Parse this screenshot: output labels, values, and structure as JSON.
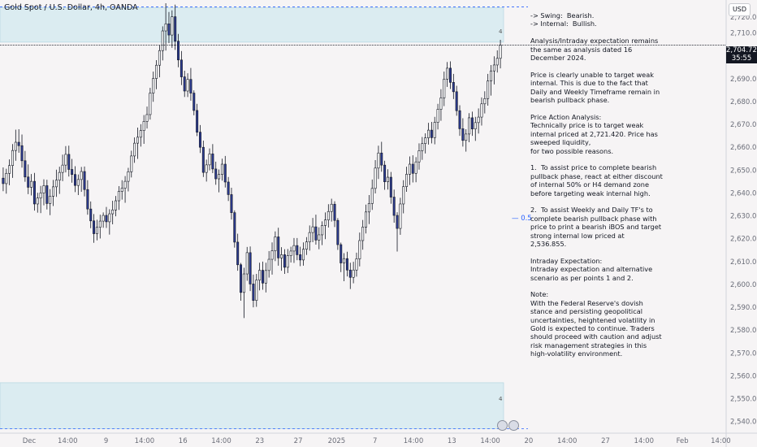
{
  "title": "Gold Spot / U.S. Dollar, 4h, OANDA",
  "currency_button": "USD",
  "last_price": "2,704.720",
  "countdown": "35:55",
  "half_label": "— 0.5",
  "zone_marker": "4",
  "zone_marker_bottom": "4",
  "note_text": "-> Swing:  Bearish.\n-> Internal:  Bullish.\n\nAnalysis/Intraday expectation remains the same as analysis dated 16 December 2024.\n\nPrice is clearly unable to target weak internal. This is due to the fact that Daily and Weekly Timeframe remain in bearish pullback phase.\n\nPrice Action Analysis:\nTechnically price is to target weak internal priced at 2,721.420. Price has sweeped liquidity,\nfor two possible reasons.\n\n1.  To assist price to complete bearish pullback phase, react at either discount of internal 50% or H4 demand zone before targeting weak internal high.\n\n2.  To assist Weekly and Daily TF's to complete bearish pullback phase with price to print a bearish iBOS and target strong internal low priced at  2,536.855.\n\nIntraday Expectation:\nIntraday expectation and alternative scenario as per points 1 and 2.\n\nNote:\nWith the Federal Reserve's dovish stance and persisting geopolitical uncertainties, heightened volatility in Gold is expected to continue. Traders should proceed with caution and adjust risk management strategies in this high-volatility environment.",
  "chart_data": {
    "type": "candlestick",
    "y_ticks": [
      "2,710.000",
      "2,700.000",
      "2,690.000",
      "2,680.000",
      "2,670.000",
      "2,660.000",
      "2,650.000",
      "2,640.000",
      "2,630.000",
      "2,620.000",
      "2,610.000",
      "2,600.000",
      "2,590.000",
      "2,580.000",
      "2,570.000",
      "2,560.000",
      "2,550.000",
      "2,540.000"
    ],
    "y_top_partial": "2,720.000",
    "ylim": [
      2536,
      2723
    ],
    "x_ticks": [
      "Dec",
      "14:00",
      "9",
      "14:00",
      "16",
      "14:00",
      "23",
      "27",
      "2025",
      "7",
      "14:00",
      "13",
      "14:00",
      "20",
      "14:00",
      "27",
      "14:00",
      "Feb",
      "14:00"
    ],
    "supply_zone": [
      2706,
      2721
    ],
    "demand_zone": [
      2536.855,
      2557
    ],
    "weak_internal_high": 2721.42,
    "strong_internal_low": 2536.855,
    "last_close": 2704.72,
    "colors": {
      "up": "#ffffff",
      "down": "#2b3a8f",
      "wick": "#131722",
      "zone": "#dbecf1",
      "zone_edge": "#b9d8e3"
    },
    "candles": [
      [
        2646.5,
        2651.2,
        2640.8,
        2644.1
      ],
      [
        2644.1,
        2650.6,
        2639.7,
        2648.6
      ],
      [
        2648.6,
        2654.7,
        2643.4,
        2652.0
      ],
      [
        2652.0,
        2661.4,
        2646.6,
        2658.6
      ],
      [
        2658.6,
        2667.7,
        2654.1,
        2662.2
      ],
      [
        2662.2,
        2667.9,
        2657.6,
        2660.7
      ],
      [
        2660.7,
        2665.6,
        2651.1,
        2654.1
      ],
      [
        2654.1,
        2658.4,
        2644.9,
        2647.0
      ],
      [
        2647.0,
        2652.5,
        2639.5,
        2642.5
      ],
      [
        2642.5,
        2648.3,
        2638.9,
        2645.1
      ],
      [
        2645.1,
        2648.8,
        2632.3,
        2635.2
      ],
      [
        2635.2,
        2640.1,
        2631.4,
        2637.8
      ],
      [
        2637.8,
        2643.1,
        2631.2,
        2640.0
      ],
      [
        2640.0,
        2646.0,
        2634.6,
        2643.2
      ],
      [
        2643.2,
        2645.8,
        2632.8,
        2635.4
      ],
      [
        2635.4,
        2641.7,
        2630.3,
        2638.6
      ],
      [
        2638.6,
        2645.7,
        2634.3,
        2642.7
      ],
      [
        2642.7,
        2650.2,
        2638.3,
        2645.6
      ],
      [
        2645.6,
        2651.5,
        2639.6,
        2649.0
      ],
      [
        2649.0,
        2656.8,
        2645.2,
        2652.2
      ],
      [
        2652.2,
        2660.5,
        2649.0,
        2656.9
      ],
      [
        2656.9,
        2660.7,
        2647.2,
        2650.3
      ],
      [
        2650.3,
        2654.9,
        2644.5,
        2648.1
      ],
      [
        2648.1,
        2651.7,
        2640.4,
        2643.3
      ],
      [
        2643.3,
        2648.1,
        2639.1,
        2645.9
      ],
      [
        2645.9,
        2651.4,
        2640.5,
        2649.4
      ],
      [
        2649.4,
        2651.6,
        2638.5,
        2641.5
      ],
      [
        2641.5,
        2645.6,
        2630.5,
        2633.0
      ],
      [
        2633.0,
        2636.3,
        2624.6,
        2627.8
      ],
      [
        2627.8,
        2630.8,
        2618.2,
        2622.2
      ],
      [
        2622.2,
        2628.3,
        2619.3,
        2625.0
      ],
      [
        2625.0,
        2630.5,
        2620.1,
        2627.7
      ],
      [
        2627.7,
        2631.5,
        2624.8,
        2630.2
      ],
      [
        2630.2,
        2633.9,
        2624.7,
        2627.4
      ],
      [
        2627.4,
        2632.9,
        2621.8,
        2630.9
      ],
      [
        2630.9,
        2636.6,
        2626.3,
        2632.6
      ],
      [
        2632.6,
        2638.7,
        2629.8,
        2636.6
      ],
      [
        2636.6,
        2643.0,
        2632.6,
        2640.7
      ],
      [
        2640.7,
        2645.6,
        2637.1,
        2642.1
      ],
      [
        2642.1,
        2647.4,
        2635.7,
        2645.1
      ],
      [
        2645.1,
        2651.0,
        2640.7,
        2649.3
      ],
      [
        2649.3,
        2658.5,
        2646.8,
        2656.2
      ],
      [
        2656.2,
        2664.3,
        2653.2,
        2661.8
      ],
      [
        2661.8,
        2668.6,
        2654.9,
        2664.4
      ],
      [
        2664.4,
        2670.1,
        2660.3,
        2667.3
      ],
      [
        2667.3,
        2674.1,
        2661.5,
        2671.3
      ],
      [
        2671.3,
        2677.8,
        2668.2,
        2674.3
      ],
      [
        2674.3,
        2686.0,
        2672.1,
        2683.7
      ],
      [
        2683.7,
        2693.1,
        2679.9,
        2690.1
      ],
      [
        2690.1,
        2698.1,
        2685.4,
        2695.9
      ],
      [
        2695.9,
        2704.6,
        2690.6,
        2702.3
      ],
      [
        2702.3,
        2712.9,
        2698.0,
        2710.9
      ],
      [
        2710.9,
        2723.0,
        2702.3,
        2714.0
      ],
      [
        2714.0,
        2719.2,
        2705.6,
        2709.1
      ],
      [
        2709.1,
        2719.9,
        2703.5,
        2717.1
      ],
      [
        2717.1,
        2722.4,
        2702.6,
        2706.4
      ],
      [
        2706.4,
        2709.6,
        2695.0,
        2698.2
      ],
      [
        2698.2,
        2702.1,
        2687.2,
        2690.8
      ],
      [
        2690.8,
        2693.5,
        2682.0,
        2684.6
      ],
      [
        2684.6,
        2692.4,
        2682.0,
        2689.7
      ],
      [
        2689.7,
        2694.7,
        2680.4,
        2683.7
      ],
      [
        2683.7,
        2684.9,
        2674.0,
        2676.1
      ],
      [
        2676.1,
        2679.0,
        2664.9,
        2666.6
      ],
      [
        2666.6,
        2669.7,
        2657.5,
        2660.0
      ],
      [
        2660.0,
        2662.9,
        2647.0,
        2649.0
      ],
      [
        2649.0,
        2654.6,
        2645.0,
        2652.3
      ],
      [
        2652.3,
        2659.5,
        2649.9,
        2657.1
      ],
      [
        2657.1,
        2661.4,
        2648.7,
        2650.5
      ],
      [
        2650.5,
        2653.7,
        2643.6,
        2646.2
      ],
      [
        2646.2,
        2650.3,
        2640.3,
        2648.1
      ],
      [
        2648.1,
        2655.0,
        2645.4,
        2652.6
      ],
      [
        2652.6,
        2656.2,
        2642.4,
        2644.8
      ],
      [
        2644.8,
        2647.0,
        2636.5,
        2639.3
      ],
      [
        2639.3,
        2642.3,
        2628.4,
        2631.4
      ],
      [
        2631.4,
        2632.4,
        2616.1,
        2618.5
      ],
      [
        2618.5,
        2622.2,
        2606.0,
        2608.6
      ],
      [
        2608.6,
        2609.4,
        2592.9,
        2596.5
      ],
      [
        2596.5,
        2607.3,
        2585.3,
        2604.6
      ],
      [
        2604.6,
        2616.4,
        2601.6,
        2613.9
      ],
      [
        2613.9,
        2616.6,
        2597.1,
        2600.2
      ],
      [
        2600.2,
        2604.3,
        2590.0,
        2593.0
      ],
      [
        2593.0,
        2604.6,
        2590.2,
        2601.9
      ],
      [
        2601.9,
        2609.5,
        2597.4,
        2606.2
      ],
      [
        2606.2,
        2610.0,
        2597.7,
        2600.6
      ],
      [
        2600.6,
        2609.5,
        2596.5,
        2606.1
      ],
      [
        2606.1,
        2614.6,
        2603.0,
        2611.0
      ],
      [
        2611.0,
        2618.4,
        2604.3,
        2614.7
      ],
      [
        2614.7,
        2623.2,
        2610.2,
        2620.8
      ],
      [
        2620.8,
        2624.8,
        2608.2,
        2611.6
      ],
      [
        2611.6,
        2616.3,
        2606.0,
        2613.0
      ],
      [
        2613.0,
        2615.4,
        2604.6,
        2607.5
      ],
      [
        2607.5,
        2615.5,
        2605.0,
        2612.6
      ],
      [
        2612.6,
        2616.5,
        2609.6,
        2614.6
      ],
      [
        2614.6,
        2620.3,
        2609.4,
        2617.0
      ],
      [
        2617.0,
        2620.3,
        2610.6,
        2613.0
      ],
      [
        2613.0,
        2616.5,
        2608.0,
        2610.7
      ],
      [
        2610.7,
        2618.4,
        2608.2,
        2615.4
      ],
      [
        2615.4,
        2620.7,
        2612.9,
        2618.6
      ],
      [
        2618.6,
        2625.8,
        2614.8,
        2622.7
      ],
      [
        2622.7,
        2629.1,
        2618.5,
        2625.2
      ],
      [
        2625.2,
        2630.5,
        2617.4,
        2619.4
      ],
      [
        2619.4,
        2625.0,
        2615.4,
        2621.7
      ],
      [
        2621.7,
        2627.6,
        2617.2,
        2625.8
      ],
      [
        2625.8,
        2631.5,
        2619.8,
        2628.2
      ],
      [
        2628.2,
        2635.1,
        2624.9,
        2631.9
      ],
      [
        2631.9,
        2637.5,
        2627.5,
        2635.1
      ],
      [
        2635.1,
        2636.4,
        2625.1,
        2628.0
      ],
      [
        2628.0,
        2629.0,
        2615.1,
        2617.4
      ],
      [
        2617.4,
        2618.3,
        2605.4,
        2609.4
      ],
      [
        2609.4,
        2613.7,
        2601.4,
        2611.3
      ],
      [
        2611.3,
        2614.3,
        2603.5,
        2606.3
      ],
      [
        2606.3,
        2609.5,
        2598.0,
        2603.1
      ],
      [
        2603.1,
        2609.9,
        2600.5,
        2606.3
      ],
      [
        2606.3,
        2613.9,
        2603.4,
        2611.2
      ],
      [
        2611.2,
        2622.7,
        2607.9,
        2619.2
      ],
      [
        2619.2,
        2628.2,
        2615.2,
        2625.1
      ],
      [
        2625.1,
        2634.9,
        2622.3,
        2631.7
      ],
      [
        2631.7,
        2639.1,
        2626.4,
        2635.4
      ],
      [
        2635.4,
        2645.9,
        2632.6,
        2642.0
      ],
      [
        2642.0,
        2654.4,
        2639.8,
        2650.9
      ],
      [
        2650.9,
        2660.7,
        2646.1,
        2657.5
      ],
      [
        2657.5,
        2662.4,
        2649.3,
        2652.2
      ],
      [
        2652.2,
        2654.1,
        2641.4,
        2644.9
      ],
      [
        2644.9,
        2650.4,
        2641.5,
        2646.9
      ],
      [
        2646.9,
        2649.2,
        2635.3,
        2638.2
      ],
      [
        2638.2,
        2641.5,
        2627.0,
        2630.2
      ],
      [
        2630.2,
        2631.6,
        2614.4,
        2624.5
      ],
      [
        2624.5,
        2637.9,
        2621.7,
        2635.2
      ],
      [
        2635.2,
        2645.6,
        2631.1,
        2642.8
      ],
      [
        2642.8,
        2651.5,
        2640.5,
        2648.2
      ],
      [
        2648.2,
        2656.0,
        2643.5,
        2652.6
      ],
      [
        2652.6,
        2656.5,
        2644.6,
        2648.6
      ],
      [
        2648.6,
        2655.7,
        2644.7,
        2653.6
      ],
      [
        2653.6,
        2661.7,
        2650.2,
        2658.5
      ],
      [
        2658.5,
        2664.5,
        2654.5,
        2661.6
      ],
      [
        2661.6,
        2666.1,
        2657.3,
        2664.1
      ],
      [
        2664.1,
        2670.7,
        2661.2,
        2667.5
      ],
      [
        2667.5,
        2671.1,
        2661.7,
        2664.2
      ],
      [
        2664.2,
        2673.3,
        2661.3,
        2670.9
      ],
      [
        2670.9,
        2679.0,
        2667.8,
        2676.6
      ],
      [
        2676.6,
        2685.4,
        2671.6,
        2681.6
      ],
      [
        2681.6,
        2693.1,
        2678.0,
        2689.8
      ],
      [
        2689.8,
        2697.3,
        2686.4,
        2694.6
      ],
      [
        2694.6,
        2697.6,
        2685.5,
        2688.4
      ],
      [
        2688.4,
        2692.1,
        2681.1,
        2684.3
      ],
      [
        2684.3,
        2686.9,
        2673.8,
        2676.0
      ],
      [
        2676.0,
        2678.4,
        2665.0,
        2668.1
      ],
      [
        2668.1,
        2672.7,
        2660.3,
        2663.0
      ],
      [
        2663.0,
        2667.9,
        2658.1,
        2665.8
      ],
      [
        2665.8,
        2674.9,
        2662.2,
        2672.9
      ],
      [
        2672.9,
        2675.6,
        2665.0,
        2668.0
      ],
      [
        2668.0,
        2673.3,
        2662.8,
        2670.8
      ],
      [
        2670.8,
        2677.0,
        2666.0,
        2673.2
      ],
      [
        2673.2,
        2681.8,
        2669.5,
        2679.0
      ],
      [
        2679.0,
        2684.5,
        2674.8,
        2681.3
      ],
      [
        2681.3,
        2692.1,
        2678.2,
        2689.0
      ],
      [
        2689.0,
        2696.0,
        2682.6,
        2693.4
      ],
      [
        2693.4,
        2699.8,
        2687.5,
        2696.0
      ],
      [
        2696.0,
        2702.4,
        2692.7,
        2698.9
      ],
      [
        2698.9,
        2707.0,
        2694.5,
        2704.7
      ]
    ]
  }
}
